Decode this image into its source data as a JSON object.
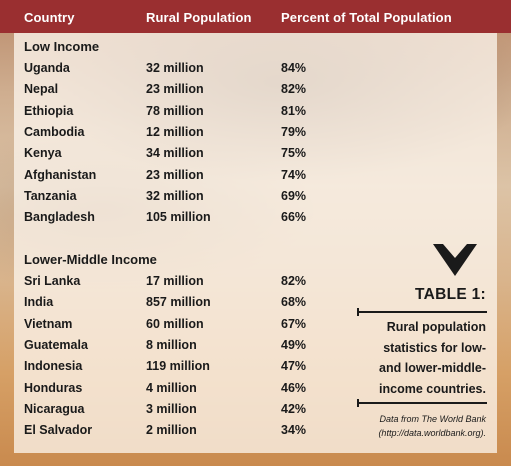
{
  "header": {
    "col_country": "Country",
    "col_rural": "Rural Population",
    "col_percent": "Percent of Total Population"
  },
  "low_income": {
    "title": "Low Income",
    "rows": [
      {
        "country": "Uganda",
        "rural": "32 million",
        "percent": "84%"
      },
      {
        "country": "Nepal",
        "rural": "23 million",
        "percent": "82%"
      },
      {
        "country": "Ethiopia",
        "rural": "78 million",
        "percent": "81%"
      },
      {
        "country": "Cambodia",
        "rural": "12 million",
        "percent": "79%"
      },
      {
        "country": "Kenya",
        "rural": "34 million",
        "percent": "75%"
      },
      {
        "country": "Afghanistan",
        "rural": "23 million",
        "percent": "74%"
      },
      {
        "country": "Tanzania",
        "rural": "32 million",
        "percent": "69%"
      },
      {
        "country": "Bangladesh",
        "rural": "105 million",
        "percent": "66%"
      }
    ]
  },
  "lower_middle_income": {
    "title": "Lower-Middle Income",
    "rows": [
      {
        "country": "Sri Lanka",
        "rural": "17 million",
        "percent": "82%"
      },
      {
        "country": "India",
        "rural": "857 million",
        "percent": "68%"
      },
      {
        "country": "Vietnam",
        "rural": "60 million",
        "percent": "67%"
      },
      {
        "country": "Guatemala",
        "rural": "8 million",
        "percent": "49%"
      },
      {
        "country": "Indonesia",
        "rural": "119 million",
        "percent": "47%"
      },
      {
        "country": "Honduras",
        "rural": "4 million",
        "percent": "46%"
      },
      {
        "country": "Nicaragua",
        "rural": "3 million",
        "percent": "42%"
      },
      {
        "country": "El Salvador",
        "rural": "2 million",
        "percent": "34%"
      }
    ]
  },
  "sidebar": {
    "icon": "chevron-down-icon",
    "title": "TABLE 1:",
    "caption_lines": [
      "Rural population",
      "statistics for low-",
      "and lower-middle-",
      "income countries."
    ],
    "source_lines": [
      "Data from The World Bank",
      "(http://data.worldbank.org)."
    ]
  },
  "colors": {
    "header_bar": "#9a2f30",
    "header_text": "#ffffff",
    "body_text": "#1a1a1a"
  }
}
